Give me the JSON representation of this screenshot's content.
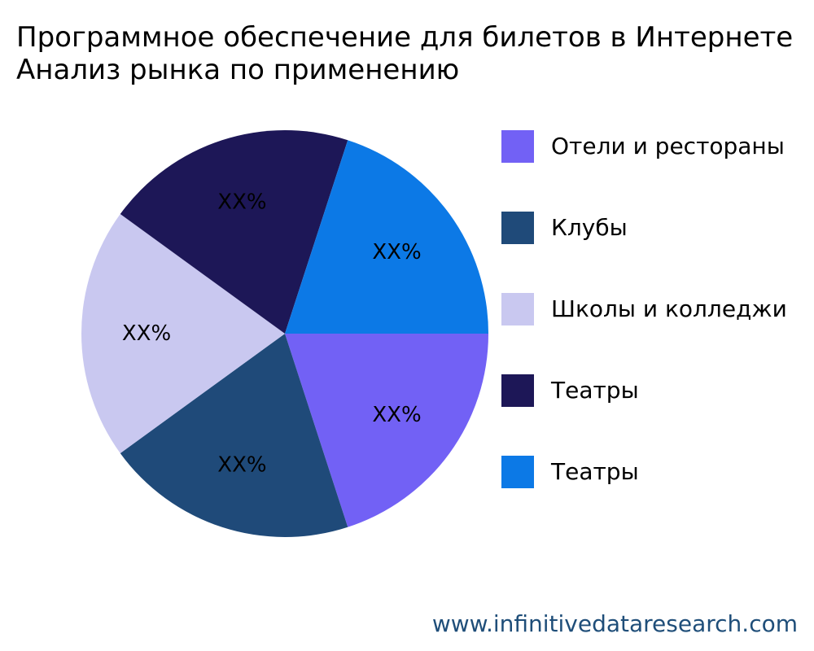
{
  "title_line1": "Программное обеспечение для билетов в Интернете",
  "title_line2": "Анализ рынка по применению",
  "footer": "www.infinitivedataresearch.com",
  "chart_data": {
    "type": "pie",
    "title": "Программное обеспечение для билетов в Интернете Анализ рынка по применению",
    "slices": [
      {
        "name": "Отели и рестораны",
        "value": 20,
        "label": "XX%",
        "color": "#7261f5"
      },
      {
        "name": "Клубы",
        "value": 20,
        "label": "XX%",
        "color": "#1f4a79"
      },
      {
        "name": "Школы и колледжи",
        "value": 20,
        "label": "XX%",
        "color": "#c9c8f0"
      },
      {
        "name": "Театры",
        "value": 20,
        "label": "XX%",
        "color": "#1d1757"
      },
      {
        "name": "Театры",
        "value": 20,
        "label": "XX%",
        "color": "#0c79e6"
      }
    ],
    "legend_position": "right"
  }
}
